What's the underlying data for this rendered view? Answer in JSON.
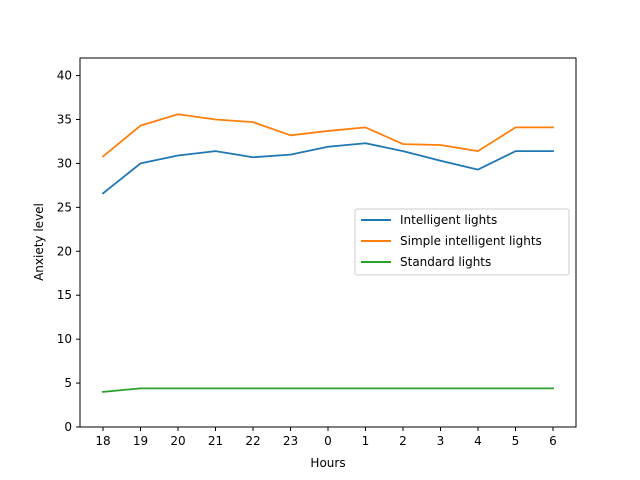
{
  "chart_data": {
    "type": "line",
    "title": "",
    "xlabel": "Hours",
    "ylabel": "Anxiety level",
    "categories": [
      "18",
      "19",
      "20",
      "21",
      "22",
      "23",
      "0",
      "1",
      "2",
      "3",
      "4",
      "5",
      "6"
    ],
    "ylim": [
      0,
      42
    ],
    "yticks": [
      0,
      5,
      10,
      15,
      20,
      25,
      30,
      35,
      40
    ],
    "grid": false,
    "legend_position": "center-right",
    "series": [
      {
        "name": "Intelligent lights",
        "color": "#1f77b4",
        "values": [
          26.6,
          30.0,
          30.9,
          31.4,
          30.7,
          31.0,
          31.9,
          32.3,
          31.4,
          30.3,
          29.3,
          31.4,
          31.4
        ]
      },
      {
        "name": "Simple intelligent lights",
        "color": "#ff7f0e",
        "values": [
          30.8,
          34.3,
          35.6,
          35.0,
          34.7,
          33.2,
          33.7,
          34.1,
          32.2,
          32.1,
          31.4,
          34.1,
          34.1
        ]
      },
      {
        "name": "Standard lights",
        "color": "#2ca02c",
        "values": [
          4.0,
          4.4,
          4.4,
          4.4,
          4.4,
          4.4,
          4.4,
          4.4,
          4.4,
          4.4,
          4.4,
          4.4,
          4.4
        ]
      }
    ]
  }
}
